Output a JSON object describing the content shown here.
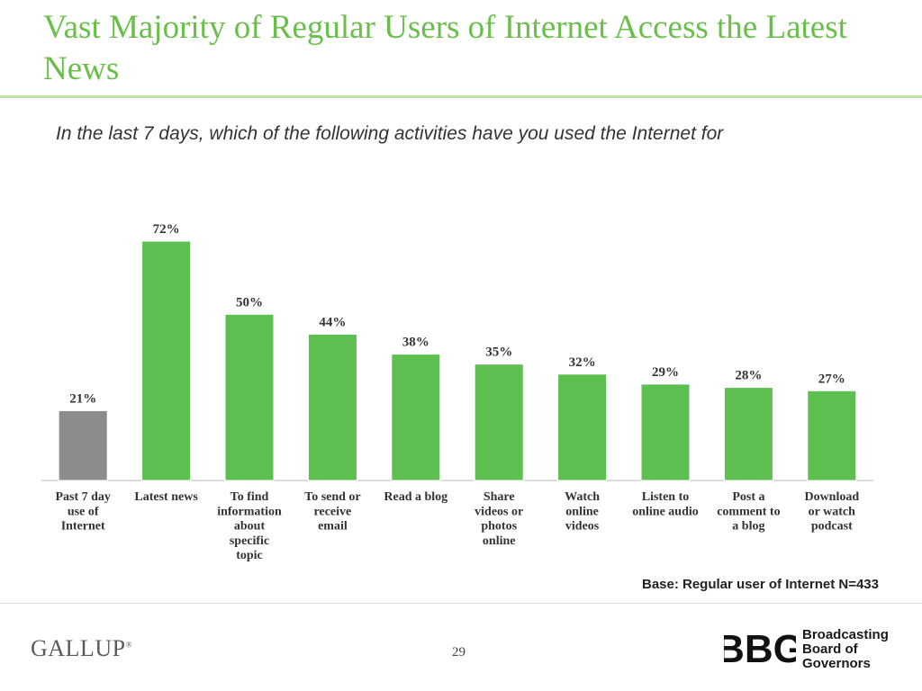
{
  "slide": {
    "title": "Vast Majority of Regular Users of Internet Access the Latest News",
    "subtitle": "In the last 7 days, which of the following activities have you used the Internet for",
    "base_note": "Base: Regular user of Internet N=433",
    "page_number": "29"
  },
  "footer": {
    "gallup_logo": "GALLUP",
    "bbg_logo": "BBG",
    "bbg_lines": [
      "Broadcasting",
      "Board of",
      "Governors"
    ]
  },
  "colors": {
    "title": "#6abf4b",
    "bar_primary": "#5cbf4f",
    "bar_baseline": "#8c8c8c"
  },
  "chart_data": {
    "type": "bar",
    "categories": [
      "Past 7 day use of Internet",
      "Latest news",
      "To find information about specific topic",
      "To send or receive email",
      "Read a blog",
      "Share videos or photos online",
      "Watch online videos",
      "Listen to online audio",
      "Post a comment to a blog",
      "Download or watch podcast"
    ],
    "category_lines": [
      [
        "Past 7 day",
        "use of",
        "Internet"
      ],
      [
        "Latest news"
      ],
      [
        "To find",
        "information",
        "about",
        "specific",
        "topic"
      ],
      [
        "To send or",
        "receive",
        "email"
      ],
      [
        "Read a blog"
      ],
      [
        "Share",
        "videos or",
        "photos",
        "online"
      ],
      [
        "Watch",
        "online",
        "videos"
      ],
      [
        "Listen to",
        "online audio"
      ],
      [
        "Post a",
        "comment to",
        "a blog"
      ],
      [
        "Download",
        "or watch",
        "podcast"
      ]
    ],
    "values": [
      21,
      72,
      50,
      44,
      38,
      35,
      32,
      29,
      28,
      27
    ],
    "value_labels": [
      "21%",
      "72%",
      "50%",
      "44%",
      "38%",
      "35%",
      "32%",
      "29%",
      "28%",
      "27%"
    ],
    "highlight_index": 0,
    "ylim": [
      0,
      80
    ],
    "grid": false,
    "legend": "none",
    "xlabel": "",
    "ylabel": ""
  }
}
